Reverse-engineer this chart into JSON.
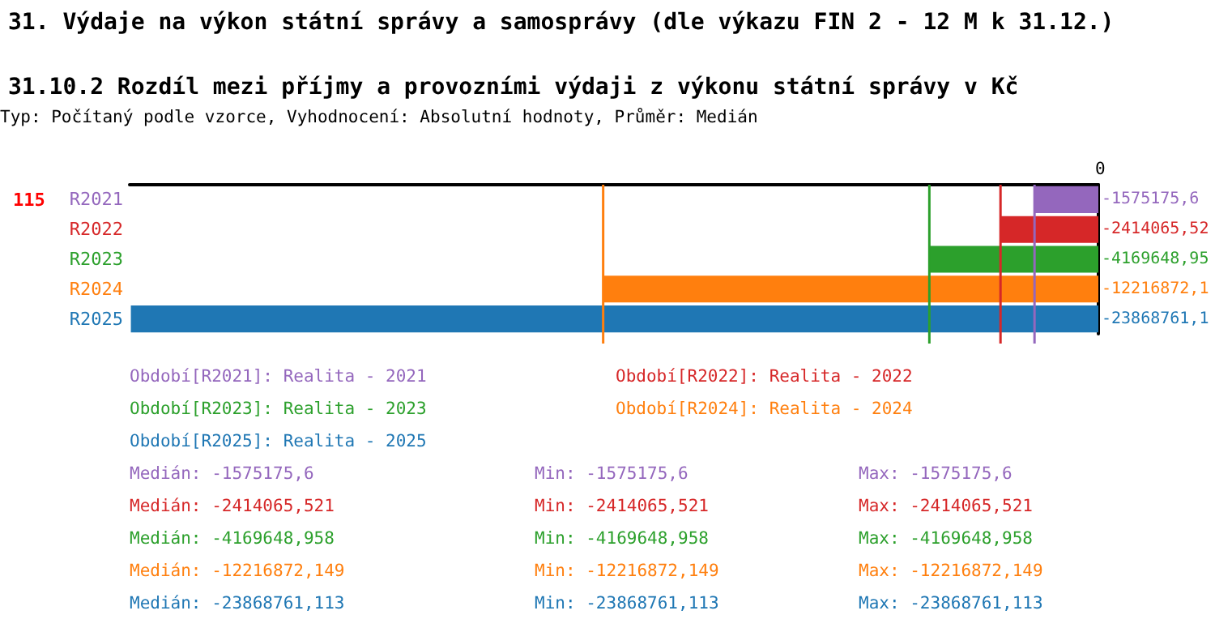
{
  "chart_data": {
    "type": "bar",
    "orientation": "horizontal",
    "xlim": [
      -23900000,
      0
    ],
    "title": "31. Výdaje na výkon státní správy a samosprávy (dle výkazu FIN 2 - 12 M k 31.12.)",
    "subtitle": "31.10.2 Rozdíl mezi příjmy a provozními výdaji z výkonu státní správy v Kč",
    "categories": [
      "R2021",
      "R2022",
      "R2023",
      "R2024",
      "R2025"
    ],
    "values": [
      -1575175.6,
      -2414065.52,
      -4169648.95,
      -12216872.1,
      -23868761.1
    ],
    "colors": [
      "#9467bd",
      "#d62728",
      "#2ca02c",
      "#ff7f0e",
      "#1f77b4"
    ],
    "value_labels": [
      "-1575175,6",
      "-2414065,52",
      "-4169648,95",
      "-12216872,1",
      "-23868761,1"
    ],
    "ref_lines": [
      {
        "axis": "x",
        "value": -1575175.6,
        "color": "#9467bd"
      },
      {
        "axis": "x",
        "value": -2414065.52,
        "color": "#d62728"
      },
      {
        "axis": "x",
        "value": -4169648.95,
        "color": "#2ca02c"
      },
      {
        "axis": "x",
        "value": -12216872.1,
        "color": "#ff7f0e"
      }
    ],
    "annotations": [
      "115",
      "Typ: Počítaný podle vzorce, Vyhodnocení: Absolutní hodnoty, Průměr: Medián",
      "Období[R2021]: Realita - 2021",
      "Období[R2022]: Realita - 2022",
      "Období[R2023]: Realita - 2023",
      "Období[R2024]: Realita - 2024",
      "Období[R2025]: Realita - 2025",
      "Medián: -1575175,6",
      "Min: -1575175,6",
      "Max: -1575175,6",
      "Medián: -2414065,521",
      "Min: -2414065,521",
      "Max: -2414065,521",
      "Medián: -4169648,958",
      "Min: -4169648,958",
      "Max: -4169648,958",
      "Medián: -12216872,149",
      "Min: -12216872,149",
      "Max: -12216872,149",
      "Medián: -23868761,113",
      "Min: -23868761,113",
      "Max: -23868761,113",
      "0"
    ]
  }
}
